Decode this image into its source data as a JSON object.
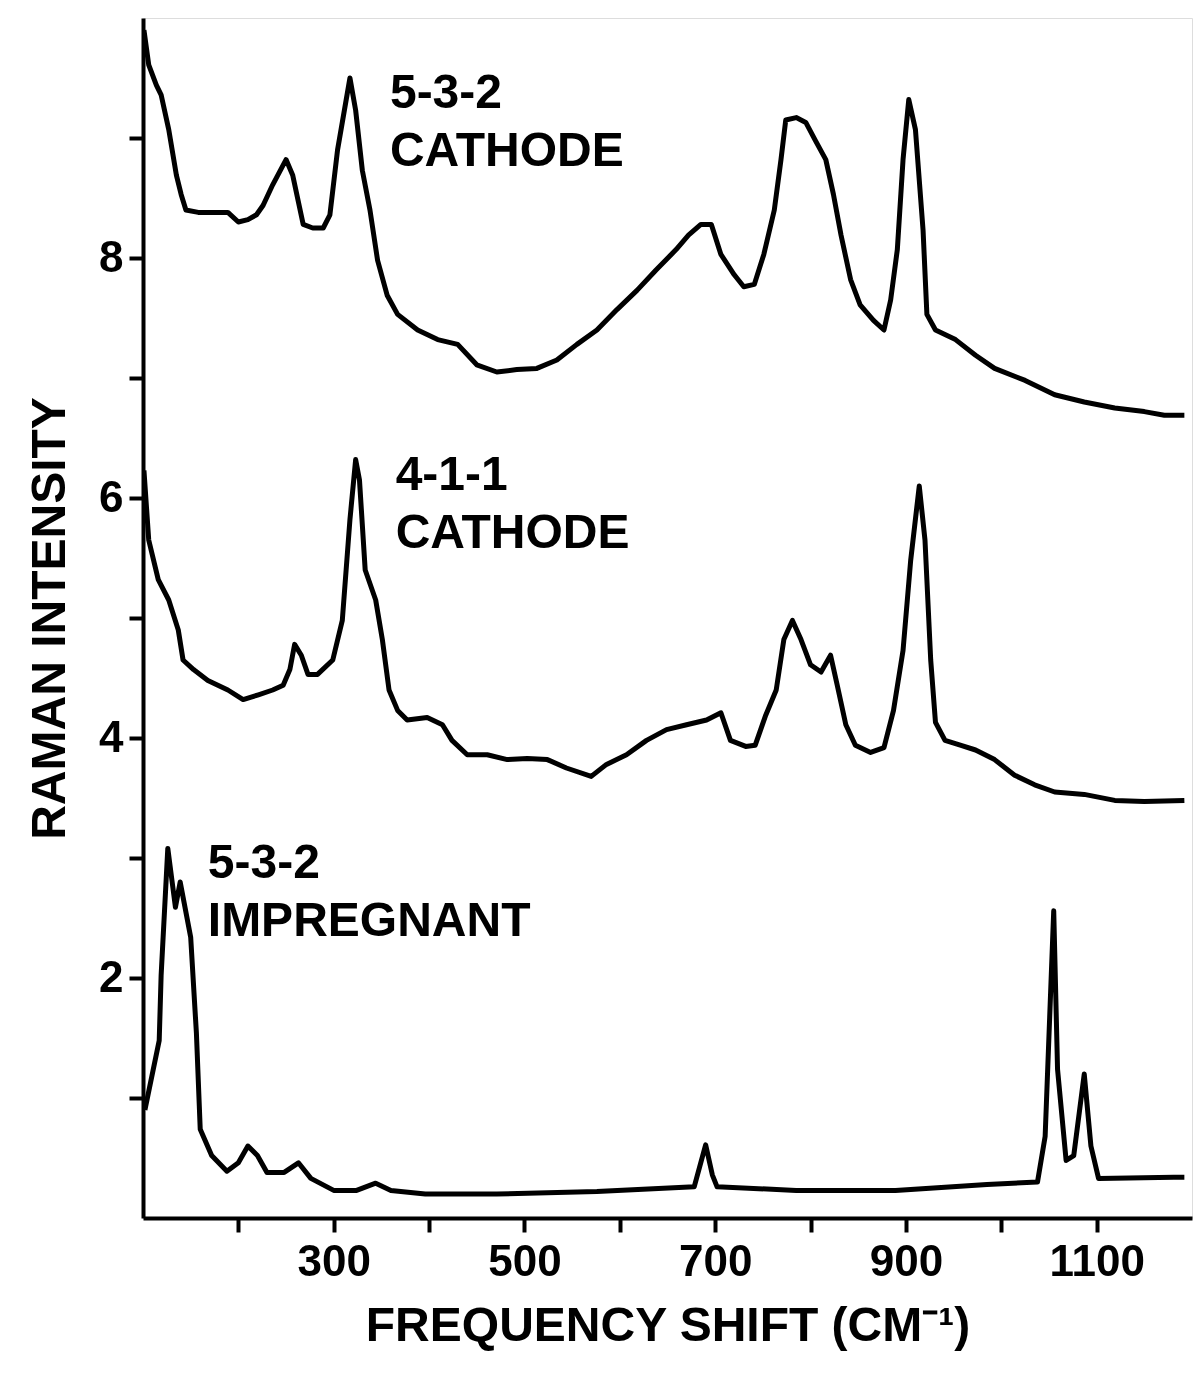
{
  "chart_data": {
    "type": "line",
    "xlabel": "FREQUENCY SHIFT (CM⁻¹)",
    "ylabel": "RAMAN INTENSITY",
    "xlim": [
      100,
      1200
    ],
    "ylim": [
      0,
      10
    ],
    "xticks": [
      {
        "value": 200,
        "label": null
      },
      300,
      {
        "value": 400,
        "label": null
      },
      500,
      {
        "value": 600,
        "label": null
      },
      700,
      {
        "value": 800,
        "label": null
      },
      900,
      {
        "value": 1000,
        "label": null
      },
      1100
    ],
    "yticks": [
      {
        "value": 1,
        "label": null
      },
      2,
      {
        "value": 3,
        "label": null
      },
      4,
      {
        "value": 5,
        "label": null
      },
      6,
      {
        "value": 7,
        "label": null
      },
      8,
      {
        "value": 9,
        "label": null
      }
    ],
    "line_style": "solid",
    "series": [
      {
        "name": "5-3-2 CATHODE",
        "color": "#000000",
        "x": [
          101,
          106,
          114,
          119,
          127,
          135,
          140,
          145,
          158,
          174,
          189,
          200,
          210,
          219,
          226,
          236,
          250,
          257,
          268,
          278,
          289,
          296,
          304,
          317,
          323,
          330,
          338,
          346,
          356,
          367,
          388,
          409,
          430,
          450,
          471,
          492,
          513,
          534,
          555,
          576,
          597,
          618,
          638,
          659,
          672,
          685,
          696,
          706,
          720,
          730,
          741,
          751,
          762,
          769,
          774,
          785,
          795,
          805,
          816,
          824,
          832,
          842,
          852,
          866,
          877,
          884,
          891,
          897,
          903,
          910,
          918,
          922,
          931,
          952,
          973,
          993,
          1025,
          1056,
          1087,
          1119,
          1150,
          1171,
          1192
        ],
        "values": [
          9.9,
          9.61,
          9.44,
          9.36,
          9.07,
          8.69,
          8.53,
          8.4,
          8.38,
          8.38,
          8.38,
          8.3,
          8.32,
          8.36,
          8.44,
          8.61,
          8.82,
          8.69,
          8.28,
          8.25,
          8.25,
          8.36,
          8.9,
          9.5,
          9.23,
          8.73,
          8.4,
          7.98,
          7.69,
          7.53,
          7.4,
          7.32,
          7.28,
          7.11,
          7.05,
          7.07,
          7.08,
          7.15,
          7.28,
          7.4,
          7.57,
          7.73,
          7.9,
          8.07,
          8.19,
          8.28,
          8.28,
          8.03,
          7.86,
          7.76,
          7.78,
          8.03,
          8.4,
          8.82,
          9.15,
          9.17,
          9.13,
          8.98,
          8.82,
          8.53,
          8.19,
          7.82,
          7.61,
          7.48,
          7.4,
          7.65,
          8.07,
          8.82,
          9.32,
          9.07,
          8.23,
          7.53,
          7.4,
          7.32,
          7.19,
          7.08,
          6.98,
          6.86,
          6.8,
          6.75,
          6.72,
          6.69,
          6.69
        ]
      },
      {
        "name": "4-1-1 CATHODE",
        "color": "#000000",
        "x": [
          101,
          106,
          116,
          127,
          137,
          142,
          153,
          168,
          189,
          205,
          221,
          236,
          247,
          254,
          259,
          266,
          273,
          283,
          299,
          309,
          317,
          323,
          327,
          333,
          344,
          351,
          358,
          367,
          377,
          398,
          414,
          424,
          440,
          461,
          482,
          503,
          524,
          544,
          570,
          586,
          607,
          628,
          649,
          670,
          691,
          706,
          716,
          732,
          742,
          753,
          764,
          772,
          781,
          790,
          800,
          811,
          821,
          828,
          837,
          847,
          863,
          877,
          887,
          897,
          905,
          914,
          920,
          926,
          931,
          941,
          957,
          973,
          993,
          1014,
          1035,
          1056,
          1087,
          1119,
          1150,
          1192
        ],
        "values": [
          6.23,
          5.65,
          5.32,
          5.15,
          4.9,
          4.65,
          4.57,
          4.48,
          4.4,
          4.32,
          4.36,
          4.4,
          4.44,
          4.57,
          4.78,
          4.69,
          4.53,
          4.53,
          4.65,
          4.98,
          5.82,
          6.32,
          6.15,
          5.4,
          5.15,
          4.82,
          4.4,
          4.23,
          4.15,
          4.17,
          4.11,
          3.98,
          3.86,
          3.86,
          3.82,
          3.83,
          3.82,
          3.75,
          3.68,
          3.78,
          3.86,
          3.98,
          4.07,
          4.11,
          4.15,
          4.21,
          3.98,
          3.93,
          3.94,
          4.19,
          4.4,
          4.82,
          4.98,
          4.82,
          4.61,
          4.55,
          4.69,
          4.44,
          4.11,
          3.94,
          3.88,
          3.92,
          4.23,
          4.73,
          5.48,
          6.1,
          5.65,
          4.65,
          4.13,
          3.98,
          3.94,
          3.9,
          3.82,
          3.69,
          3.61,
          3.55,
          3.53,
          3.48,
          3.47,
          3.48
        ]
      },
      {
        "name": "5-3-2 IMPREGNANT",
        "color": "#000000",
        "x": [
          102,
          117,
          119,
          126,
          134,
          139,
          150,
          156,
          160,
          172,
          188,
          200,
          210,
          220,
          230,
          248,
          263,
          276,
          300,
          324,
          344,
          360,
          396,
          471,
          576,
          678,
          690,
          697,
          702,
          785,
          889,
          985,
          1038,
          1046,
          1055,
          1059,
          1068,
          1076,
          1087,
          1094,
          1102,
          1181,
          1192
        ],
        "values": [
          0.9,
          1.48,
          2.02,
          3.08,
          2.59,
          2.8,
          2.34,
          1.54,
          0.74,
          0.52,
          0.39,
          0.46,
          0.6,
          0.52,
          0.38,
          0.38,
          0.46,
          0.33,
          0.23,
          0.23,
          0.29,
          0.23,
          0.2,
          0.2,
          0.22,
          0.26,
          0.61,
          0.36,
          0.26,
          0.23,
          0.23,
          0.28,
          0.3,
          0.68,
          2.56,
          1.24,
          0.48,
          0.52,
          1.2,
          0.6,
          0.33,
          0.34,
          0.34
        ]
      }
    ]
  }
}
